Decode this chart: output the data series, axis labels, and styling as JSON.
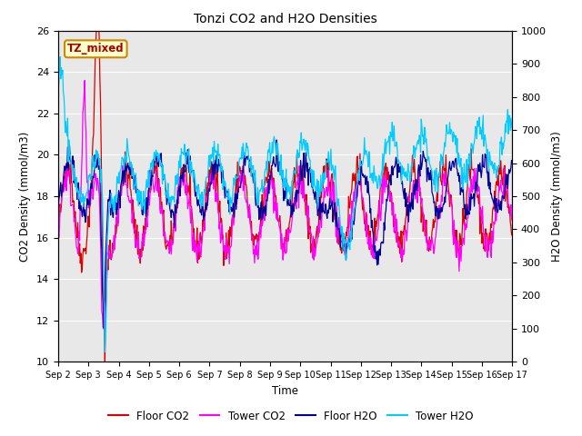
{
  "title": "Tonzi CO2 and H2O Densities",
  "xlabel": "Time",
  "ylabel_left": "CO2 Density (mmol/m3)",
  "ylabel_right": "H2O Density (mmol/m3)",
  "ylim_left": [
    10,
    26
  ],
  "ylim_right": [
    0,
    1000
  ],
  "yticks_left": [
    10,
    12,
    14,
    16,
    18,
    20,
    22,
    24,
    26
  ],
  "yticks_right": [
    0,
    100,
    200,
    300,
    400,
    500,
    600,
    700,
    800,
    900,
    1000
  ],
  "line_colors": {
    "floor_co2": "#dd0000",
    "tower_co2": "#ff00ff",
    "floor_h2o": "#000099",
    "tower_h2o": "#00ccff"
  },
  "line_widths": {
    "floor_co2": 0.9,
    "tower_co2": 0.9,
    "floor_h2o": 0.9,
    "tower_h2o": 0.9
  },
  "legend_labels": [
    "Floor CO2",
    "Tower CO2",
    "Floor H2O",
    "Tower H2O"
  ],
  "annotation_text": "TZ_mixed",
  "bg_color": "#e8e8e8",
  "fig_bg_color": "#ffffff",
  "xtick_labels": [
    "Sep 2",
    "Sep 3",
    "Sep 4",
    "Sep 5",
    "Sep 6",
    "Sep 7",
    "Sep 8",
    "Sep 9",
    "Sep 10",
    "Sep 11",
    "Sep 12",
    "Sep 13",
    "Sep 14",
    "Sep 15",
    "Sep 16",
    "Sep 17"
  ],
  "n_days": 15,
  "n_points": 720
}
